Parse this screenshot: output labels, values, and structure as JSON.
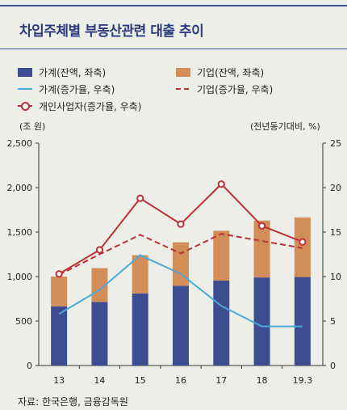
{
  "title": "차입주체별 부동산관련 대출 추이",
  "unit_left": "(조 원)",
  "unit_right": "(전년동기대비, %)",
  "source": "자료: 한국은행, 금융감독원",
  "colors": {
    "household_balance": "#3e4d92",
    "corporate_balance": "#d38d59",
    "household_growth": "#4aa9d9",
    "corporate_growth": "#b83236",
    "self_employed_growth": "#b83236"
  },
  "chart_data": {
    "type": "bar",
    "categories": [
      "13",
      "14",
      "15",
      "16",
      "17",
      "18",
      "19.3"
    ],
    "left_axis": {
      "ylim": [
        0,
        2500
      ],
      "ticks": [
        "0",
        "500",
        "1,000",
        "1,500",
        "2,000",
        "2,500"
      ],
      "tick_values": [
        0,
        500,
        1000,
        1500,
        2000,
        2500
      ]
    },
    "right_axis": {
      "ylim": [
        0,
        25
      ],
      "ticks": [
        "0",
        "5",
        "10",
        "15",
        "20",
        "25"
      ],
      "tick_values": [
        0,
        5,
        10,
        15,
        20,
        25
      ]
    },
    "series": [
      {
        "name": "가계(잔액, 좌축)",
        "kind": "stacked-bar",
        "axis": "left",
        "values": [
          665,
          715,
          810,
          895,
          955,
          990,
          995
        ]
      },
      {
        "name": "기업(잔액, 좌축)",
        "kind": "stacked-bar",
        "axis": "left",
        "values": [
          335,
          380,
          430,
          490,
          560,
          640,
          670
        ]
      },
      {
        "name": "가계(증가율, 우축)",
        "kind": "line",
        "axis": "right",
        "values": [
          5.8,
          8.5,
          12.4,
          10.3,
          6.7,
          4.4,
          4.4
        ]
      },
      {
        "name": "기업(증가율, 우축)",
        "kind": "dashed-line",
        "axis": "right",
        "values": [
          10.2,
          12.5,
          14.7,
          12.6,
          14.8,
          14.0,
          13.2
        ]
      },
      {
        "name": "개인사업자(증가율, 우축)",
        "kind": "line-marker",
        "axis": "right",
        "values": [
          10.3,
          13.0,
          18.8,
          15.9,
          20.4,
          15.7,
          13.9
        ]
      }
    ]
  }
}
